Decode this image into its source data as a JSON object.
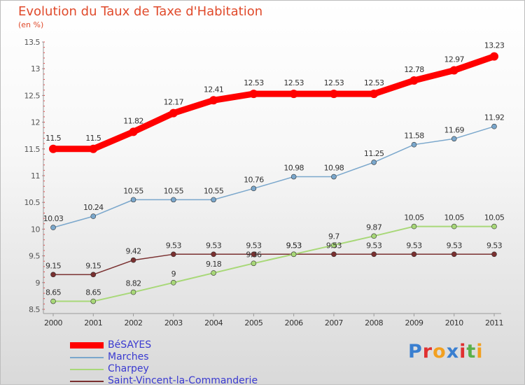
{
  "title": "Evolution du Taux de Taxe d'Habitation",
  "subtitle": "(en %)",
  "chart_data": {
    "type": "line",
    "x": [
      "2000",
      "2001",
      "2002",
      "2003",
      "2004",
      "2005",
      "2006",
      "2007",
      "2008",
      "2009",
      "2010",
      "2011"
    ],
    "y_ticks": [
      "8.5",
      "9",
      "9.5",
      "10",
      "10.5",
      "11",
      "11.5",
      "12",
      "12.5",
      "13",
      "13.5"
    ],
    "ylim": [
      8.5,
      13.5
    ],
    "series": [
      {
        "name": "BéSAYES",
        "color": "#ff0000",
        "width": 9,
        "marker": 6,
        "values": [
          11.5,
          11.5,
          11.82,
          12.17,
          12.41,
          12.53,
          12.53,
          12.53,
          12.53,
          12.78,
          12.97,
          13.23
        ],
        "labels": [
          "11.5",
          "11.5",
          "11.82",
          "12.17",
          "12.41",
          "12.53",
          "12.53",
          "12.53",
          "12.53",
          "12.78",
          "12.97",
          "13.23"
        ]
      },
      {
        "name": "Marches",
        "color": "#7aa7cc",
        "width": 1.5,
        "marker": 3.5,
        "values": [
          10.03,
          10.24,
          10.55,
          10.55,
          10.55,
          10.76,
          10.98,
          10.98,
          11.25,
          11.58,
          11.69,
          11.92
        ],
        "labels": [
          "10.03",
          "10.24",
          "10.55",
          "10.55",
          "10.55",
          "10.76",
          "10.98",
          "10.98",
          "11.25",
          "11.58",
          "11.69",
          "11.92"
        ]
      },
      {
        "name": "Charpey",
        "color": "#a8d878",
        "width": 2,
        "marker": 3.5,
        "values": [
          8.65,
          8.65,
          8.82,
          9,
          9.18,
          9.36,
          9.53,
          9.7,
          9.87,
          10.05,
          10.05,
          10.05
        ],
        "labels": [
          "8.65",
          "8.65",
          "8.82",
          "9",
          "9.18",
          "9.36",
          "9.53",
          "9.7",
          "9.87",
          "10.05",
          "10.05",
          "10.05"
        ]
      },
      {
        "name": "Saint-Vincent-la-Commanderie",
        "color": "#7a3030",
        "width": 1.5,
        "marker": 3.5,
        "values": [
          9.15,
          9.15,
          9.42,
          9.53,
          9.53,
          9.53,
          9.53,
          9.53,
          9.53,
          9.53,
          9.53,
          9.53
        ],
        "labels": [
          "9.15",
          "9.15",
          "9.42",
          "9.53",
          "9.53",
          "9.53",
          "9.53",
          "9.53",
          "9.53",
          "9.53",
          "9.53",
          "9.53"
        ]
      }
    ]
  },
  "legend": [
    {
      "label": "BéSAYES",
      "color": "#ff0000"
    },
    {
      "label": "Marches",
      "color": "#7aa7cc"
    },
    {
      "label": "Charpey",
      "color": "#a8d878"
    },
    {
      "label": "Saint-Vincent-la-Commanderie",
      "color": "#7a3030"
    }
  ],
  "logo": {
    "letters": [
      "P",
      "r",
      "o",
      "x",
      "i",
      "t",
      "i"
    ],
    "colors": [
      "#3a7fd0",
      "#e03030",
      "#f2a020",
      "#3a7fd0",
      "#e03030",
      "#5ab04a",
      "#f2a020"
    ]
  }
}
